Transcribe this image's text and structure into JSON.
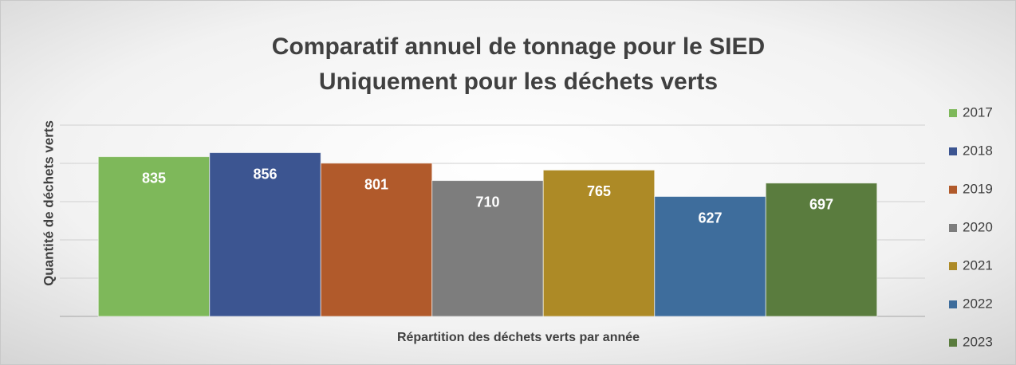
{
  "chart_data": {
    "type": "bar",
    "title": [
      "Comparatif annuel de tonnage  pour le SIED",
      "Uniquement pour les déchets verts"
    ],
    "y_label": "Quantité de déchets verts",
    "x_label": "Répartition des déchets verts par année",
    "categories": [
      null
    ],
    "series": [
      {
        "name": "2017",
        "color": "#7eb85a",
        "values": [
          835
        ]
      },
      {
        "name": "2018",
        "color": "#3c5591",
        "values": [
          856
        ]
      },
      {
        "name": "2019",
        "color": "#b15a2b",
        "values": [
          801
        ]
      },
      {
        "name": "2020",
        "color": "#7d7d7d",
        "values": [
          710
        ]
      },
      {
        "name": "2021",
        "color": "#ad8a26",
        "values": [
          765
        ]
      },
      {
        "name": "2022",
        "color": "#3e6d9c",
        "values": [
          627
        ]
      },
      {
        "name": "2023",
        "color": "#5a7c3e",
        "values": [
          697
        ]
      }
    ],
    "ylim": [
      0,
      1000
    ],
    "yticks": [
      0,
      200,
      400,
      600,
      800,
      1000
    ],
    "grid": true,
    "legend": "right"
  }
}
